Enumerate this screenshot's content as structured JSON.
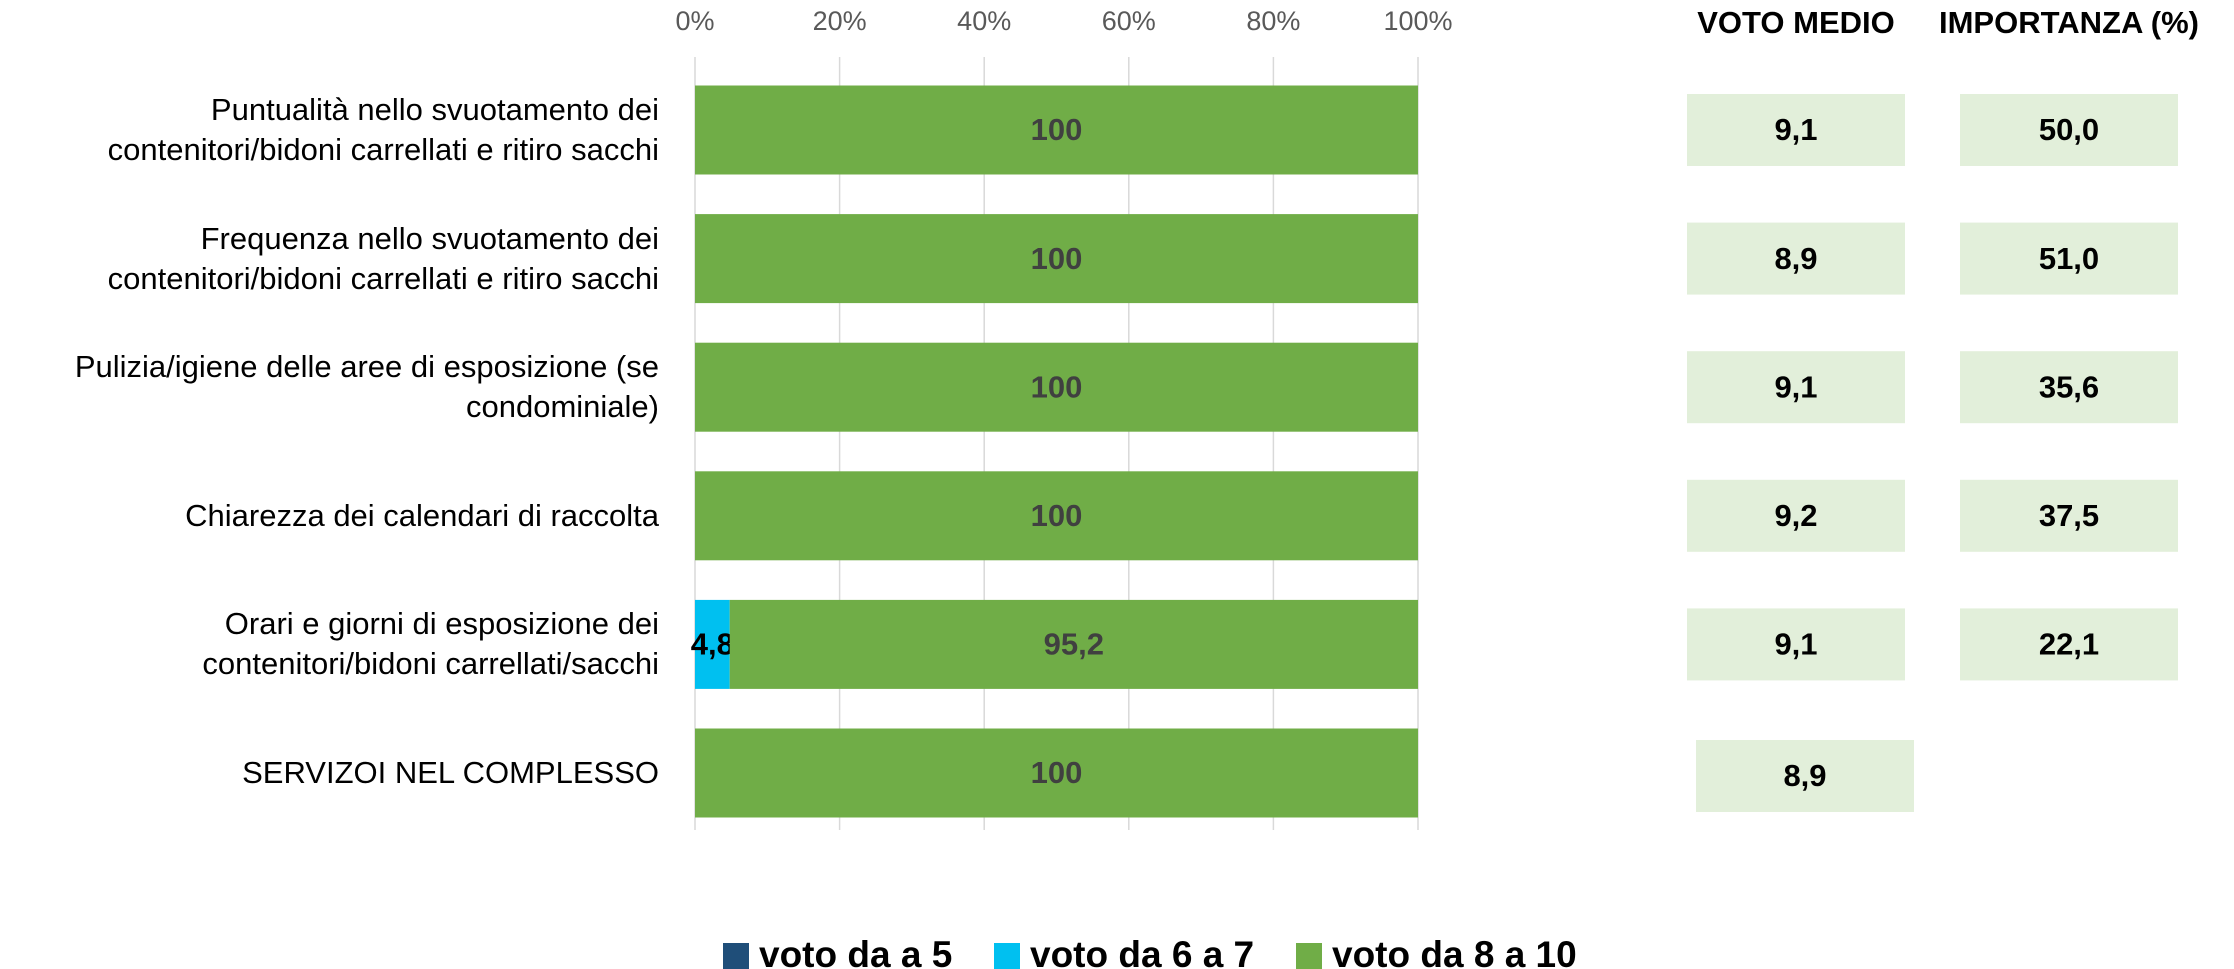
{
  "chart_data": {
    "type": "stacked_barh",
    "categories": [
      "Puntualità nello svuotamento dei\ncontenitori/bidoni carrellati e ritiro sacchi",
      "Frequenza nello svuotamento dei\ncontenitori/bidoni carrellati e ritiro sacchi",
      "Pulizia/igiene delle aree di esposizione (se\ncondominiale)",
      "Chiarezza dei calendari di raccolta",
      "Orari e giorni di esposizione dei\ncontenitori/bidoni carrellati/sacchi",
      "SERVIZOI NEL COMPLESSO"
    ],
    "series": [
      {
        "name": "voto da a 5",
        "color": "#1f4e79",
        "values": [
          0,
          0,
          0,
          0,
          0,
          0
        ]
      },
      {
        "name": "voto da 6 a 7",
        "color": "#00c0f0",
        "values": [
          0,
          0,
          0,
          0,
          4.8,
          0
        ],
        "value_labels": [
          null,
          null,
          null,
          null,
          "4,8",
          null
        ]
      },
      {
        "name": "voto da 8 a 10",
        "color": "#70ad47",
        "values": [
          100,
          100,
          100,
          100,
          95.2,
          100
        ],
        "value_labels": [
          "100",
          "100",
          "100",
          "100",
          "95,2",
          "100"
        ]
      }
    ],
    "xlim": [
      0,
      100
    ],
    "xticks": [
      {
        "value": 0,
        "label": "0%"
      },
      {
        "value": 20,
        "label": "20%"
      },
      {
        "value": 40,
        "label": "40%"
      },
      {
        "value": 60,
        "label": "60%"
      },
      {
        "value": 80,
        "label": "80%"
      },
      {
        "value": 100,
        "label": "100%"
      }
    ],
    "grid": true,
    "legend": "bottom",
    "voto_medio": {
      "title": "VOTO MEDIO",
      "values": [
        9.1,
        8.9,
        9.1,
        9.2,
        9.1,
        8.9
      ],
      "value_labels": [
        "9,1",
        "8,9",
        "9,1",
        "9,2",
        "9,1",
        "8,9"
      ]
    },
    "importanza": {
      "title": "IMPORTANZA (%)",
      "values": [
        50.0,
        51.0,
        35.6,
        37.5,
        22.1
      ],
      "value_labels": [
        "50,0",
        "51,0",
        "35,6",
        "37,5",
        "22,1"
      ]
    }
  }
}
